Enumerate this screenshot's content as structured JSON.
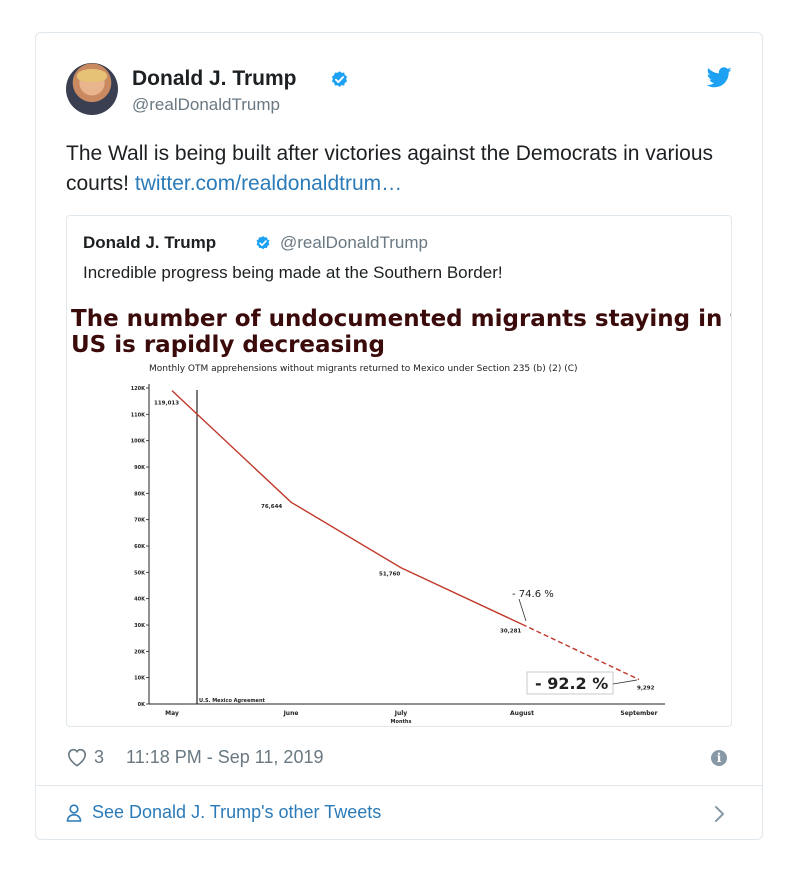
{
  "tweet": {
    "author_name": "Donald J. Trump",
    "author_handle": "@realDonaldTrump",
    "text": "The Wall is being built after victories against the Democrats in various courts!",
    "link": "twitter.com/realdonaldtrum…",
    "likes": "3",
    "timestamp": "11:18 PM - Sep 11, 2019"
  },
  "quoted": {
    "author_name": "Donald J. Trump",
    "author_handle": "@realDonaldTrump",
    "text": "Incredible progress being made at the Southern Border!"
  },
  "footer": {
    "see_more": "See Donald J. Trump's other Tweets"
  },
  "colors": {
    "link": "#2b7bb9",
    "muted": "#697882",
    "verified": "#1da1f2",
    "chart_line": "#c0392b",
    "headline": "#3b0a0a"
  },
  "icons": [
    "verified-badge-icon",
    "twitter-bird-icon",
    "heart-icon",
    "info-icon",
    "person-icon",
    "chevron-right-icon"
  ],
  "chart_data": {
    "type": "line",
    "title": "The number of undocumented migrants staying in the US is rapidly decreasing",
    "subtitle": "Monthly OTM apprehensions without migrants returned to Mexico under Section 235 (b) (2) (C)",
    "xlabel": "Months",
    "ylabel": "",
    "categories": [
      "May",
      "June",
      "July",
      "August",
      "September"
    ],
    "values": [
      119013,
      76644,
      51760,
      30281,
      9292
    ],
    "value_labels": [
      "119,013",
      "76,644",
      "51,760",
      "30,281",
      "9,292"
    ],
    "yticks": [
      "0K",
      "10K",
      "20K",
      "30K",
      "40K",
      "50K",
      "60K",
      "70K",
      "80K",
      "90K",
      "100K",
      "110K",
      "120K"
    ],
    "ylim": [
      0,
      120000
    ],
    "annotations": [
      {
        "text": "U.S. Mexico Agreement",
        "x": "June"
      },
      {
        "text": "- 74.6 %",
        "x": "August"
      },
      {
        "text": "- 92.2 %",
        "x": "September"
      }
    ],
    "grid": false
  }
}
